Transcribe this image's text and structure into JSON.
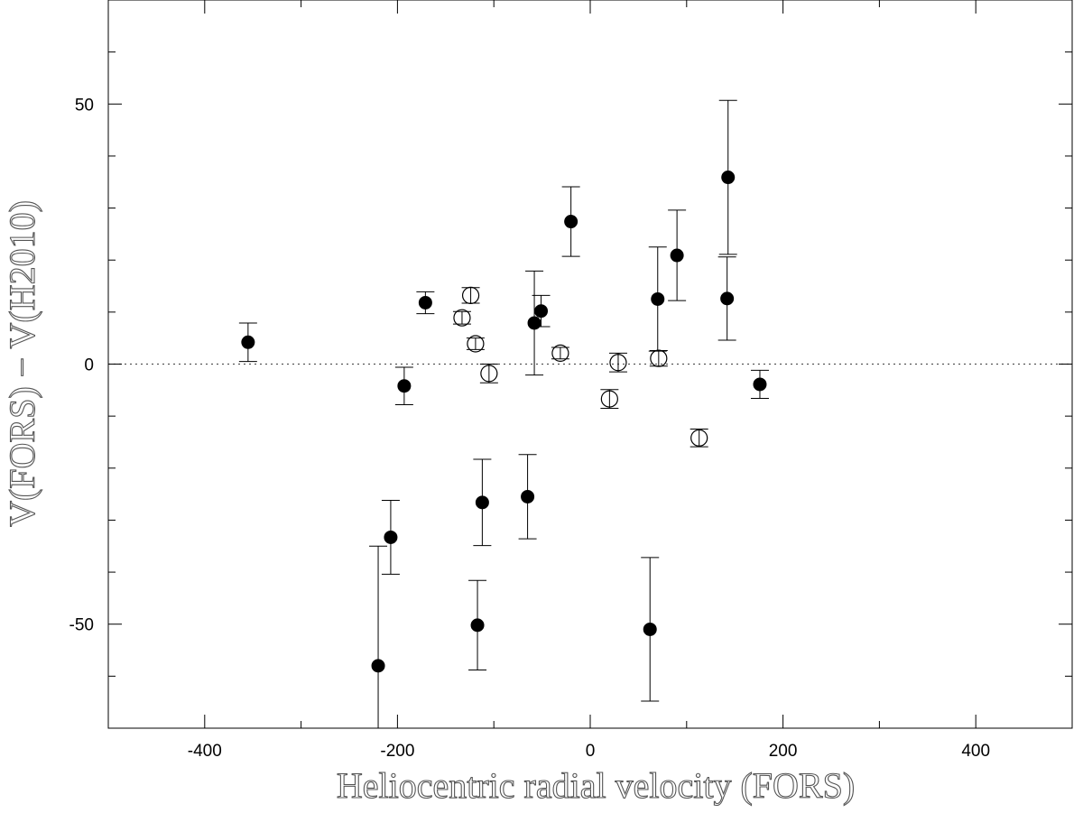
{
  "chart_data": {
    "type": "scatter",
    "xlabel": "Heliocentric radial velocity (FORS)",
    "ylabel": "V(FORS) − V(H2010)",
    "xlim": [
      -500,
      500
    ],
    "ylim": [
      -70,
      70
    ],
    "x_ticks": [
      -400,
      -200,
      0,
      200,
      400
    ],
    "y_ticks": [
      -50,
      0,
      50
    ],
    "x_ticks_labeled": [
      "-400",
      "-200",
      "0",
      "200",
      "400"
    ],
    "y_ticks_labeled": [
      "-50",
      "0",
      "50"
    ],
    "reference_line": {
      "y": 0,
      "style": "dotted"
    },
    "grid": false,
    "series": [
      {
        "marker": "filled-circle",
        "color": "#000000",
        "points": [
          {
            "x": -355,
            "y": 4.2,
            "err": 3.7
          },
          {
            "x": -193,
            "y": -4.2,
            "err": 3.6
          },
          {
            "x": -171,
            "y": 11.8,
            "err": 2.1
          },
          {
            "x": -207,
            "y": -33.3,
            "err": 7.1
          },
          {
            "x": -220,
            "y": -58.0,
            "err": 23.0
          },
          {
            "x": -112,
            "y": -26.6,
            "err": 8.3
          },
          {
            "x": -117,
            "y": -50.2,
            "err": 8.6
          },
          {
            "x": -58,
            "y": 7.9,
            "err": 10.0
          },
          {
            "x": -51,
            "y": 10.2,
            "err": 3.0
          },
          {
            "x": -65,
            "y": -25.5,
            "err": 8.1
          },
          {
            "x": -20,
            "y": 27.4,
            "err": 6.7
          },
          {
            "x": 62,
            "y": -51.0,
            "err": 13.8
          },
          {
            "x": 70,
            "y": 12.5,
            "err": 10.0
          },
          {
            "x": 90,
            "y": 20.9,
            "err": 8.7
          },
          {
            "x": 142,
            "y": 12.6,
            "err": 8.0
          },
          {
            "x": 143,
            "y": 35.9,
            "err": 14.8
          },
          {
            "x": 176,
            "y": -3.9,
            "err": 2.7
          }
        ]
      },
      {
        "marker": "open-circle",
        "color": "#000000",
        "points": [
          {
            "x": -124,
            "y": 13.2,
            "err": 1.5
          },
          {
            "x": -133,
            "y": 8.9,
            "err": 1.2
          },
          {
            "x": -119,
            "y": 3.9,
            "err": 1.1
          },
          {
            "x": -105,
            "y": -1.8,
            "err": 1.8
          },
          {
            "x": -31,
            "y": 2.1,
            "err": 1.1
          },
          {
            "x": 20,
            "y": -6.7,
            "err": 1.8
          },
          {
            "x": 29,
            "y": 0.3,
            "err": 1.8
          },
          {
            "x": 71,
            "y": 1.1,
            "err": 1.5
          },
          {
            "x": 113,
            "y": -14.2,
            "err": 1.7
          }
        ]
      }
    ]
  }
}
